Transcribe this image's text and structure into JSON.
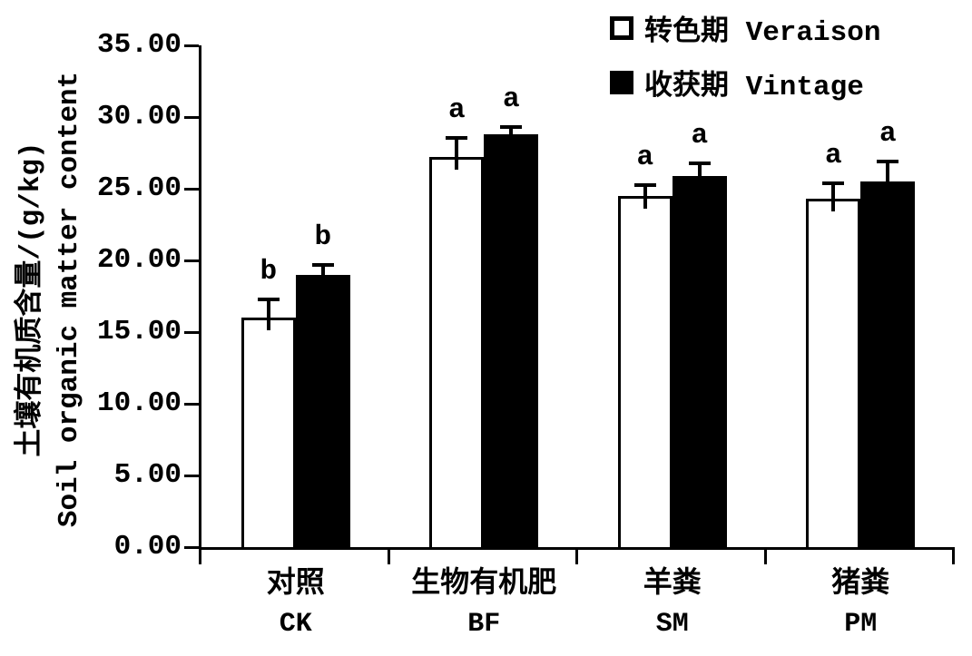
{
  "figure": {
    "background": "#ffffff",
    "ink": "#000000"
  },
  "chart_data": {
    "type": "bar",
    "title": "",
    "ylabel_zh": "土壤有机质含量/(g/kg)",
    "ylabel_en": "Soil organic matter content",
    "ylim": [
      0,
      35
    ],
    "ytick_step": 5,
    "ytick_labels": [
      "0.00",
      "5.00",
      "10.00",
      "15.00",
      "20.00",
      "25.00",
      "30.00",
      "35.00"
    ],
    "grid": false,
    "legend_position": "top-right",
    "bar_style": {
      "open_fill": "#ffffff",
      "filled_fill": "#000000",
      "outline": "#000000"
    },
    "categories": [
      {
        "label_zh": "对照",
        "label_en": "CK"
      },
      {
        "label_zh": "生物有机肥",
        "label_en": "BF"
      },
      {
        "label_zh": "羊粪",
        "label_en": "SM"
      },
      {
        "label_zh": "猪粪",
        "label_en": "PM"
      }
    ],
    "series": [
      {
        "name": "转色期 Veraison",
        "fill": "#ffffff",
        "values": [
          16.0,
          27.2,
          24.5,
          24.3
        ],
        "errors": [
          1.4,
          1.5,
          0.9,
          1.2
        ],
        "sig_letters": [
          "b",
          "a",
          "a",
          "a"
        ]
      },
      {
        "name": "收获期 Vintage",
        "fill": "#000000",
        "values": [
          19.0,
          28.8,
          25.9,
          25.5
        ],
        "errors": [
          0.8,
          0.6,
          1.0,
          1.5
        ],
        "sig_letters": [
          "b",
          "a",
          "a",
          "a"
        ]
      }
    ]
  }
}
